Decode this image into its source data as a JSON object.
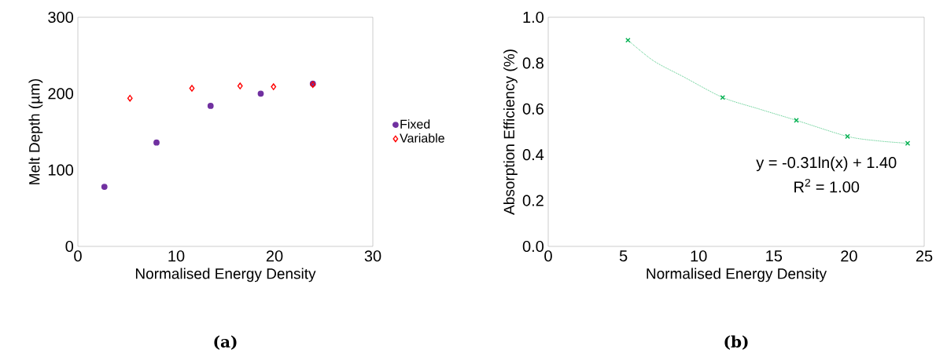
{
  "chart_data": [
    {
      "type": "scatter",
      "xlabel": "Normalised Energy Density",
      "ylabel": "Melt Depth (µm)",
      "xlim": [
        0,
        30
      ],
      "ylim": [
        0,
        300
      ],
      "xticks": [
        0,
        10,
        20,
        30
      ],
      "yticks": [
        0,
        100,
        200,
        300
      ],
      "grid": false,
      "legend": "right",
      "annotations": [
        "**(a)**"
      ],
      "series": [
        {
          "name": "Fixed",
          "color": "#7030a0",
          "marker": "circle",
          "x": [
            2.7,
            8.0,
            13.5,
            18.6,
            23.9
          ],
          "values": [
            78,
            136,
            184,
            200,
            213
          ]
        },
        {
          "name": "Variable",
          "color": "#ff0000",
          "marker": "diamond",
          "x": [
            5.3,
            11.6,
            16.5,
            19.9,
            23.9
          ],
          "values": [
            194,
            207,
            210,
            209,
            212
          ]
        }
      ]
    },
    {
      "type": "scatter",
      "xlabel": "Normalised Energy Density",
      "ylabel": "Absorption Efficiency (%)",
      "xlim": [
        0,
        25
      ],
      "ylim": [
        0,
        1
      ],
      "xticks": [
        0,
        5,
        10,
        15,
        20,
        25
      ],
      "yticks": [
        {
          "value": 0,
          "label": "0.0"
        },
        {
          "value": 0.2,
          "label": "0.2"
        },
        {
          "value": 0.4,
          "label": "0.4"
        },
        {
          "value": 0.6,
          "label": "0.6"
        },
        {
          "value": 0.8,
          "label": "0.8"
        },
        {
          "value": 1,
          "label": "1.0"
        }
      ],
      "grid": false,
      "legend": false,
      "annotations": [
        "y = -0.31ln(x)  + 1.40",
        "R$^{2}$ = 1.00",
        "**(b)**"
      ],
      "series": [
        {
          "type": "line",
          "color": "#00b050",
          "marker": "none",
          "line_style": "dotted",
          "x": [
            5.3,
            7,
            9,
            11.6,
            14,
            16.5,
            19.9,
            22,
            23.9
          ],
          "values": [
            0.9,
            0.81,
            0.74,
            0.65,
            0.6,
            0.55,
            0.48,
            0.46,
            0.45
          ]
        },
        {
          "color": "#00b050",
          "marker": "cross",
          "x": [
            5.3,
            11.6,
            16.5,
            19.9,
            23.9
          ],
          "values": [
            0.9,
            0.65,
            0.55,
            0.48,
            0.45
          ]
        }
      ]
    }
  ]
}
